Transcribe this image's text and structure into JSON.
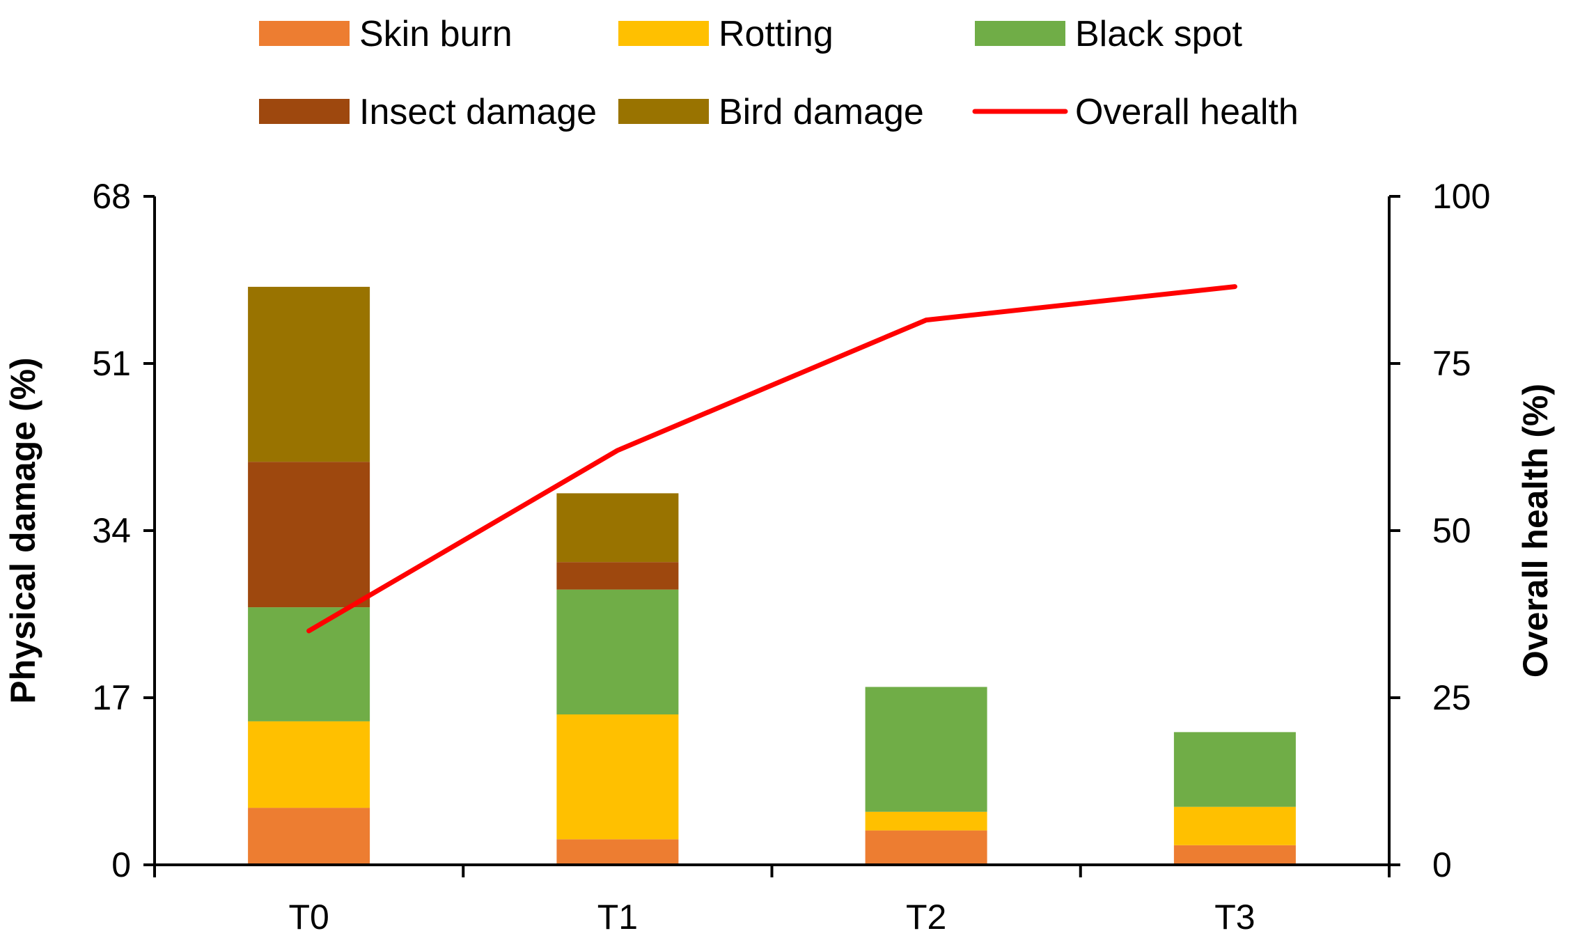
{
  "chart_data": {
    "type": "bar",
    "stacked": true,
    "categories": [
      "T0",
      "T1",
      "T2",
      "T3"
    ],
    "series": [
      {
        "name": "Skin burn",
        "color": "#ED7D31",
        "values": [
          5.8,
          2.6,
          3.5,
          2.0
        ]
      },
      {
        "name": "Rotting",
        "color": "#FFC000",
        "values": [
          8.8,
          12.7,
          1.9,
          3.9
        ]
      },
      {
        "name": "Black spot",
        "color": "#70AD47",
        "values": [
          11.6,
          12.7,
          12.7,
          7.6
        ]
      },
      {
        "name": "Insect damage",
        "color": "#9E480E",
        "values": [
          14.8,
          2.8,
          0,
          0
        ]
      },
      {
        "name": "Bird damage",
        "color": "#997300",
        "values": [
          17.8,
          7.0,
          0,
          0
        ]
      }
    ],
    "line_series": {
      "name": "Overall health",
      "color": "#FF0000",
      "values": [
        35,
        62,
        81.5,
        86.5
      ],
      "axis": "right"
    },
    "ylabel": "Physical damage (%)",
    "ylabel_right": "Overall health (%)",
    "ylim": [
      0,
      68
    ],
    "yticks": [
      "0",
      "17",
      "34",
      "51",
      "68"
    ],
    "ylim_right": [
      0,
      100
    ],
    "yticks_right": [
      "0",
      "25",
      "50",
      "75",
      "100"
    ],
    "legend_position": "top",
    "grid": false
  }
}
